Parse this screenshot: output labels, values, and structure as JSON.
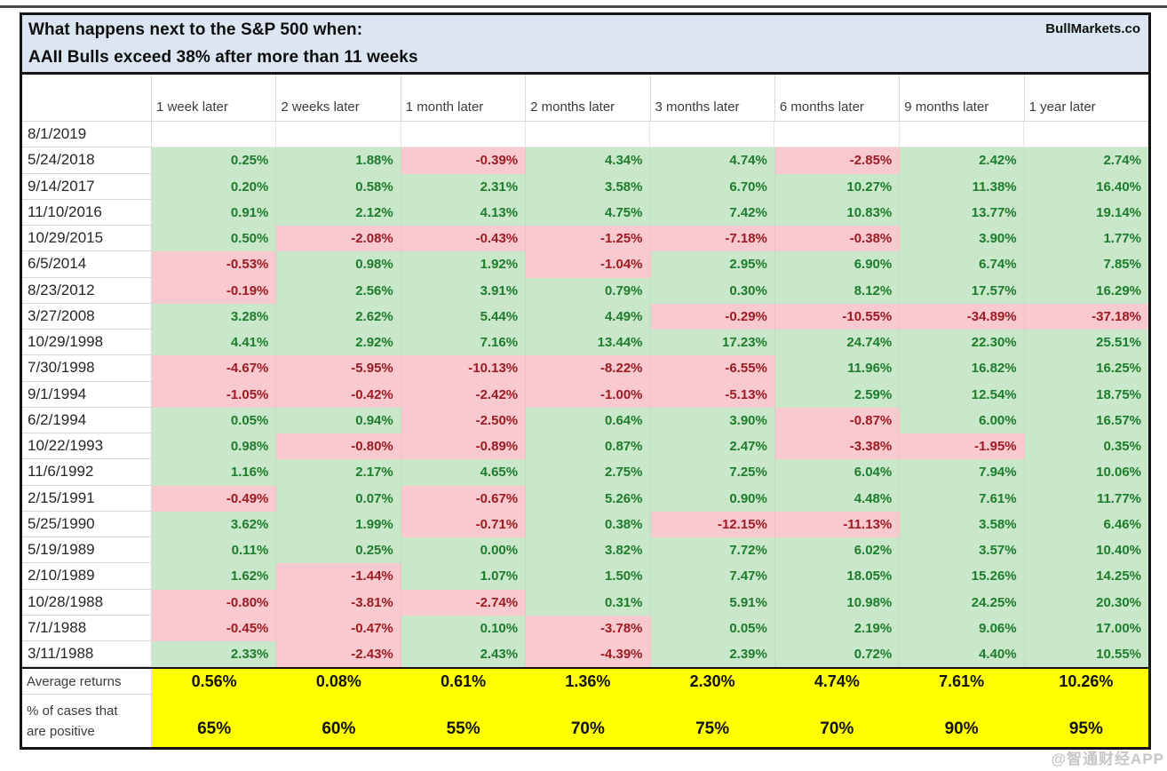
{
  "title": {
    "line1": "What happens next to the S&P 500 when:",
    "line2": "AAII Bulls exceed 38% after more than 11 weeks",
    "brand": "BullMarkets.co"
  },
  "watermark": "@智通财经APP",
  "colors": {
    "title_bg": "#dbe6f2",
    "positive_bg": "#c9e8ca",
    "positive_text": "#1e7b2c",
    "negative_bg": "#f8c9ce",
    "negative_text": "#9d1b22",
    "summary_bg": "#ffff00",
    "border": "#141414"
  },
  "table": {
    "columns": [
      "1 week later",
      "2 weeks later",
      "1 month later",
      "2 months later",
      "3 months later",
      "6 months later",
      "9 months later",
      "1 year later"
    ],
    "rows": [
      {
        "date": "8/1/2019",
        "values": [
          "",
          "",
          "",
          "",
          "",
          "",
          "",
          ""
        ]
      },
      {
        "date": "5/24/2018",
        "values": [
          "0.25%",
          "1.88%",
          "-0.39%",
          "4.34%",
          "4.74%",
          "-2.85%",
          "2.42%",
          "2.74%"
        ]
      },
      {
        "date": "9/14/2017",
        "values": [
          "0.20%",
          "0.58%",
          "2.31%",
          "3.58%",
          "6.70%",
          "10.27%",
          "11.38%",
          "16.40%"
        ]
      },
      {
        "date": "11/10/2016",
        "values": [
          "0.91%",
          "2.12%",
          "4.13%",
          "4.75%",
          "7.42%",
          "10.83%",
          "13.77%",
          "19.14%"
        ]
      },
      {
        "date": "10/29/2015",
        "values": [
          "0.50%",
          "-2.08%",
          "-0.43%",
          "-1.25%",
          "-7.18%",
          "-0.38%",
          "3.90%",
          "1.77%"
        ]
      },
      {
        "date": "6/5/2014",
        "values": [
          "-0.53%",
          "0.98%",
          "1.92%",
          "-1.04%",
          "2.95%",
          "6.90%",
          "6.74%",
          "7.85%"
        ]
      },
      {
        "date": "8/23/2012",
        "values": [
          "-0.19%",
          "2.56%",
          "3.91%",
          "0.79%",
          "0.30%",
          "8.12%",
          "17.57%",
          "16.29%"
        ]
      },
      {
        "date": "3/27/2008",
        "values": [
          "3.28%",
          "2.62%",
          "5.44%",
          "4.49%",
          "-0.29%",
          "-10.55%",
          "-34.89%",
          "-37.18%"
        ]
      },
      {
        "date": "10/29/1998",
        "values": [
          "4.41%",
          "2.92%",
          "7.16%",
          "13.44%",
          "17.23%",
          "24.74%",
          "22.30%",
          "25.51%"
        ]
      },
      {
        "date": "7/30/1998",
        "values": [
          "-4.67%",
          "-5.95%",
          "-10.13%",
          "-8.22%",
          "-6.55%",
          "11.96%",
          "16.82%",
          "16.25%"
        ]
      },
      {
        "date": "9/1/1994",
        "values": [
          "-1.05%",
          "-0.42%",
          "-2.42%",
          "-1.00%",
          "-5.13%",
          "2.59%",
          "12.54%",
          "18.75%"
        ]
      },
      {
        "date": "6/2/1994",
        "values": [
          "0.05%",
          "0.94%",
          "-2.50%",
          "0.64%",
          "3.90%",
          "-0.87%",
          "6.00%",
          "16.57%"
        ]
      },
      {
        "date": "10/22/1993",
        "values": [
          "0.98%",
          "-0.80%",
          "-0.89%",
          "0.87%",
          "2.47%",
          "-3.38%",
          "-1.95%",
          "0.35%"
        ]
      },
      {
        "date": "11/6/1992",
        "values": [
          "1.16%",
          "2.17%",
          "4.65%",
          "2.75%",
          "7.25%",
          "6.04%",
          "7.94%",
          "10.06%"
        ]
      },
      {
        "date": "2/15/1991",
        "values": [
          "-0.49%",
          "0.07%",
          "-0.67%",
          "5.26%",
          "0.90%",
          "4.48%",
          "7.61%",
          "11.77%"
        ]
      },
      {
        "date": "5/25/1990",
        "values": [
          "3.62%",
          "1.99%",
          "-0.71%",
          "0.38%",
          "-12.15%",
          "-11.13%",
          "3.58%",
          "6.46%"
        ]
      },
      {
        "date": "5/19/1989",
        "values": [
          "0.11%",
          "0.25%",
          "0.00%",
          "3.82%",
          "7.72%",
          "6.02%",
          "3.57%",
          "10.40%"
        ]
      },
      {
        "date": "2/10/1989",
        "values": [
          "1.62%",
          "-1.44%",
          "1.07%",
          "1.50%",
          "7.47%",
          "18.05%",
          "15.26%",
          "14.25%"
        ]
      },
      {
        "date": "10/28/1988",
        "values": [
          "-0.80%",
          "-3.81%",
          "-2.74%",
          "0.31%",
          "5.91%",
          "10.98%",
          "24.25%",
          "20.30%"
        ]
      },
      {
        "date": "7/1/1988",
        "values": [
          "-0.45%",
          "-0.47%",
          "0.10%",
          "-3.78%",
          "0.05%",
          "2.19%",
          "9.06%",
          "17.00%"
        ]
      },
      {
        "date": "3/11/1988",
        "values": [
          "2.33%",
          "-2.43%",
          "2.43%",
          "-4.39%",
          "2.39%",
          "0.72%",
          "4.40%",
          "10.55%"
        ]
      }
    ],
    "summary": [
      {
        "label_lines": [
          "Average returns"
        ],
        "values": [
          "0.56%",
          "0.08%",
          "0.61%",
          "1.36%",
          "2.30%",
          "4.74%",
          "7.61%",
          "10.26%"
        ]
      },
      {
        "label_lines": [
          "% of cases that",
          "are positive"
        ],
        "values": [
          "65%",
          "60%",
          "55%",
          "70%",
          "75%",
          "70%",
          "90%",
          "95%"
        ]
      }
    ]
  }
}
